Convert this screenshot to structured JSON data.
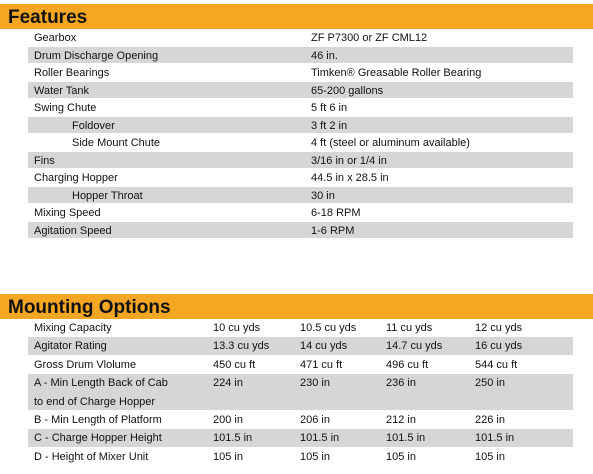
{
  "features": {
    "title": "Features",
    "rows": [
      {
        "label": "Gearbox",
        "value": "ZF P7300 or ZF CML12"
      },
      {
        "label": "Drum Discharge Opening",
        "value": "46 in."
      },
      {
        "label": "Roller Bearings",
        "value": "Timken® Greasable Roller Bearing"
      },
      {
        "label": "Water Tank",
        "value": "65-200 gallons"
      },
      {
        "label": "Swing Chute",
        "value": "5 ft 6 in"
      },
      {
        "label": "Foldover",
        "value": "3 ft 2 in"
      },
      {
        "label": "Side Mount Chute",
        "value": "4 ft (steel or aluminum available)"
      },
      {
        "label": "Fins",
        "value": "3/16 in or 1/4 in"
      },
      {
        "label": "Charging Hopper",
        "value": "44.5 in x 28.5 in"
      },
      {
        "label": "Hopper Throat",
        "value": "30 in"
      },
      {
        "label": "Mixing Speed",
        "value": "6-18 RPM"
      },
      {
        "label": "Agitation Speed",
        "value": "1-6 RPM"
      }
    ]
  },
  "mounting": {
    "title": "Mounting Options",
    "rows": [
      {
        "label": "Mixing Capacity",
        "values": [
          "10 cu yds",
          "10.5 cu yds",
          "11 cu yds",
          "12 cu yds"
        ]
      },
      {
        "label": "Agitator Rating",
        "values": [
          "13.3 cu yds",
          "14 cu yds",
          "14.7 cu yds",
          "16 cu yds"
        ]
      },
      {
        "label": "Gross Drum Vlolume",
        "values": [
          "450 cu ft",
          "471 cu ft",
          "496 cu ft",
          "544 cu ft"
        ]
      },
      {
        "label": "A - Min Length Back of Cab\n    to end of Charge Hopper",
        "values": [
          "224 in",
          "230 in",
          "236 in",
          "250 in"
        ]
      },
      {
        "label": "B - Min Length of Platform",
        "values": [
          "200 in",
          "206 in",
          "212 in",
          "226 in"
        ]
      },
      {
        "label": "C - Charge Hopper Height",
        "values": [
          "101.5 in",
          "101.5 in",
          "101.5 in",
          "101.5 in"
        ]
      },
      {
        "label": "D - Height of Mixer Unit",
        "values": [
          "105 in",
          "105 in",
          "105 in",
          "105 in"
        ]
      }
    ]
  }
}
